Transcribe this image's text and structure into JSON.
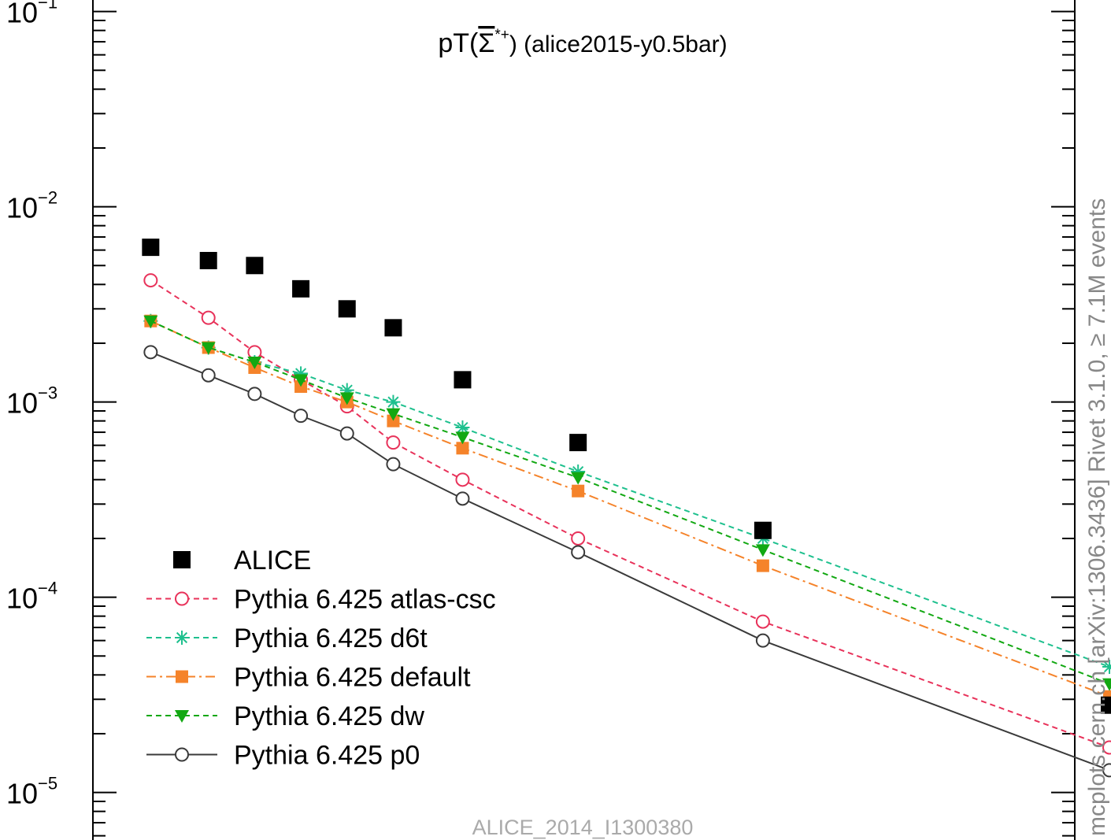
{
  "chart_data": {
    "type": "line",
    "title": {
      "prefix": "pT(",
      "symbol": "Σ",
      "sup": "*+",
      "suffix": ") (alice2015-y0.5bar)"
    },
    "y_scale": "log",
    "ylim": [
      5.3e-06,
      0.12
    ],
    "xlim": [
      0.4,
      8.9
    ],
    "y_tick_labels": [
      {
        "exp": "−1",
        "value": 0.1
      },
      {
        "exp": "−2",
        "value": 0.01
      },
      {
        "exp": "−3",
        "value": 0.001
      },
      {
        "exp": "−4",
        "value": 0.0001
      },
      {
        "exp": "−5",
        "value": 1e-05
      }
    ],
    "watermark": "ALICE_2014_I1300380",
    "side_label": "mcplots.cern.ch [arXiv:1306.3436]   Rivet 3.1.0, ≥ 7.1M events",
    "x": [
      0.9,
      1.4,
      1.8,
      2.2,
      2.6,
      3.0,
      3.6,
      4.6,
      6.2,
      9.2
    ],
    "series": [
      {
        "name": "ALICE",
        "color": "#000000",
        "marker": "square",
        "line": "none",
        "values": [
          0.0062,
          0.0053,
          0.005,
          0.0038,
          0.003,
          0.0024,
          0.0013,
          0.00062,
          0.00022,
          2.8e-05
        ]
      },
      {
        "name": "Pythia 6.425 atlas-csc",
        "color": "#e8325a",
        "marker": "open-circle",
        "line": "dashed",
        "values": [
          0.0042,
          0.0027,
          0.0018,
          0.0013,
          0.00095,
          0.00062,
          0.0004,
          0.0002,
          7.5e-05,
          1.7e-05
        ]
      },
      {
        "name": "Pythia 6.425 d6t",
        "color": "#1ec08e",
        "marker": "asterisk",
        "line": "dashed",
        "values": [
          0.0026,
          0.0019,
          0.0016,
          0.0014,
          0.00115,
          0.001,
          0.00074,
          0.00044,
          0.0002,
          4.4e-05
        ]
      },
      {
        "name": "Pythia 6.425 default",
        "color": "#f5832a",
        "marker": "filled-square",
        "line": "dashdot",
        "values": [
          0.0026,
          0.0019,
          0.0015,
          0.0012,
          0.001,
          0.0008,
          0.00058,
          0.00035,
          0.000145,
          3.1e-05
        ]
      },
      {
        "name": "Pythia 6.425 dw",
        "color": "#12a812",
        "marker": "triangle-down",
        "line": "dashed",
        "values": [
          0.0026,
          0.0019,
          0.0016,
          0.0013,
          0.00105,
          0.00087,
          0.00066,
          0.00041,
          0.000175,
          3.6e-05
        ]
      },
      {
        "name": "Pythia 6.425 p0",
        "color": "#3a3a3a",
        "marker": "open-circle",
        "line": "solid",
        "values": [
          0.0018,
          0.00137,
          0.0011,
          0.00085,
          0.00069,
          0.00048,
          0.00032,
          0.00017,
          6e-05,
          1.3e-05
        ]
      }
    ]
  }
}
